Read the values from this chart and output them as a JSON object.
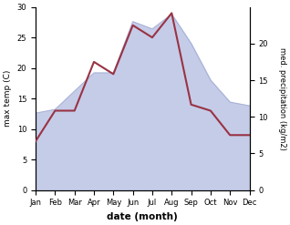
{
  "months": [
    "Jan",
    "Feb",
    "Mar",
    "Apr",
    "May",
    "Jun",
    "Jul",
    "Aug",
    "Sep",
    "Oct",
    "Nov",
    "Dec"
  ],
  "temperature": [
    8.0,
    13.0,
    13.0,
    21.0,
    19.0,
    27.0,
    25.0,
    29.0,
    14.0,
    13.0,
    9.0,
    9.0
  ],
  "precipitation": [
    10.5,
    11.0,
    13.5,
    16.0,
    16.0,
    23.0,
    22.0,
    24.0,
    20.0,
    15.0,
    12.0,
    11.5
  ],
  "temp_color": "#993344",
  "precip_fill_color": "#c5cce8",
  "precip_edge_color": "#aab4d8",
  "temp_ylim": [
    0,
    30
  ],
  "precip_ylim": [
    0,
    25
  ],
  "temp_yticks": [
    0,
    5,
    10,
    15,
    20,
    25,
    30
  ],
  "precip_yticks": [
    0,
    5,
    10,
    15,
    20
  ],
  "xlabel": "date (month)",
  "ylabel_left": "max temp (C)",
  "ylabel_right": "med. precipitation (kg/m2)"
}
